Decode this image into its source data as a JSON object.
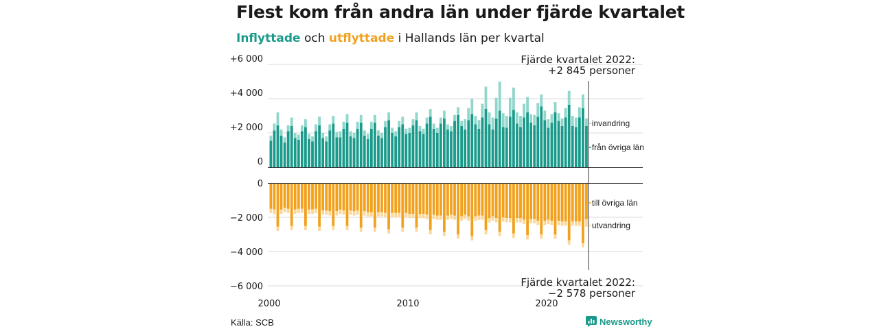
{
  "title": "Flest kom från andra län under fjärde kvartalet",
  "subtitle": {
    "part1": "Inflyttade",
    "part2": " och ",
    "part3": "utflyttade",
    "part4": " i Hallands län per kvartal"
  },
  "source": "Källa: SCB",
  "brand": "Newsworthy",
  "brand_icon": "chart-logo-icon",
  "colors": {
    "in_dark": "#1a9a8a",
    "in_light": "#8fd6cb",
    "out_dark": "#f2a11d",
    "out_light": "#fbd89a",
    "grid": "#d9d9d9",
    "axis": "#333333"
  },
  "chart_data": {
    "type": "bar",
    "stacked": true,
    "diverging": true,
    "grid": true,
    "x_ticks": [
      "2000",
      "2010",
      "2020"
    ],
    "y_top_ticks": [
      "+6 000",
      "+4 000",
      "+2 000",
      "0"
    ],
    "y_bottom_ticks": [
      "0",
      "−2 000",
      "−4 000",
      "−6 000"
    ],
    "ylim_top": [
      0,
      6000
    ],
    "ylim_bottom": [
      -6000,
      0
    ],
    "series_labels": {
      "in_other": "från övriga län",
      "in_abroad": "invandring",
      "out_other": "till övriga län",
      "out_abroad": "utvandring"
    },
    "annotation_top": {
      "line1": "Fjärde kvartalet 2022:",
      "line2": "+2 845 personer"
    },
    "annotation_bottom": {
      "line1": "Fjärde kvartalet 2022:",
      "line2": "−2 578 personer"
    },
    "x_start_year": 2000,
    "quarters_per_year": 4,
    "in_other": [
      1550,
      2150,
      2450,
      1850,
      1450,
      2100,
      2400,
      1700,
      1600,
      2100,
      2350,
      1650,
      1500,
      2100,
      2450,
      1700,
      1500,
      2150,
      2550,
      1750,
      1750,
      2250,
      2600,
      1800,
      1700,
      2250,
      2600,
      1850,
      1650,
      2250,
      2600,
      1850,
      1700,
      2350,
      2750,
      2000,
      1800,
      2350,
      2500,
      1950,
      2000,
      2450,
      2750,
      2100,
      1950,
      2550,
      2950,
      2250,
      2000,
      2550,
      2850,
      2200,
      2100,
      2700,
      3050,
      2400,
      2200,
      2750,
      3100,
      2500,
      2250,
      2900,
      3400,
      2500,
      2200,
      2850,
      3300,
      2350,
      2300,
      2950,
      3350,
      2550,
      2350,
      2900,
      3200,
      2600,
      2450,
      2950,
      3550,
      2750,
      2300,
      2600,
      3200,
      2700,
      2400,
      2900,
      3650,
      2400,
      2350,
      2900,
      3450,
      2400
    ],
    "in_abroad": [
      300,
      400,
      750,
      350,
      300,
      350,
      500,
      300,
      300,
      350,
      450,
      300,
      300,
      400,
      500,
      300,
      300,
      350,
      450,
      300,
      350,
      400,
      500,
      300,
      300,
      400,
      450,
      300,
      300,
      400,
      450,
      300,
      300,
      350,
      450,
      300,
      300,
      350,
      450,
      300,
      300,
      350,
      450,
      300,
      300,
      350,
      450,
      300,
      300,
      350,
      450,
      300,
      300,
      350,
      450,
      300,
      600,
      700,
      900,
      500,
      500,
      800,
      1300,
      700,
      700,
      1200,
      1700,
      800,
      700,
      1100,
      1300,
      650,
      650,
      800,
      900,
      500,
      600,
      800,
      700,
      550,
      500,
      500,
      600,
      450,
      450,
      550,
      800,
      600,
      550,
      600,
      800,
      450
    ],
    "out_other": [
      1500,
      1550,
      2550,
      1550,
      1450,
      1500,
      2500,
      1550,
      1500,
      1500,
      2500,
      1550,
      1550,
      1500,
      2550,
      1600,
      1600,
      1650,
      2500,
      1650,
      1550,
      1600,
      2500,
      1600,
      1650,
      1600,
      2600,
      1650,
      1700,
      1700,
      2600,
      1700,
      1700,
      1750,
      2700,
      1750,
      1750,
      1750,
      2600,
      1750,
      1800,
      1800,
      2600,
      1800,
      1800,
      1850,
      2750,
      1850,
      1900,
      1900,
      2850,
      1900,
      1850,
      1900,
      3000,
      1950,
      1850,
      1950,
      3100,
      1950,
      1900,
      1900,
      2750,
      2050,
      1950,
      2050,
      2850,
      2000,
      2050,
      2050,
      2950,
      2050,
      2050,
      2150,
      3050,
      2100,
      2100,
      2200,
      3000,
      2200,
      2150,
      2200,
      3000,
      2200,
      2250,
      2250,
      3350,
      2250,
      2250,
      2250,
      3500,
      2100
    ],
    "out_abroad": [
      250,
      250,
      250,
      250,
      250,
      250,
      250,
      250,
      250,
      250,
      250,
      250,
      250,
      250,
      250,
      250,
      250,
      250,
      250,
      250,
      250,
      250,
      250,
      250,
      250,
      250,
      250,
      250,
      250,
      250,
      250,
      250,
      250,
      250,
      250,
      250,
      250,
      250,
      250,
      250,
      250,
      250,
      250,
      250,
      250,
      250,
      250,
      250,
      250,
      250,
      250,
      250,
      250,
      250,
      250,
      250,
      250,
      250,
      250,
      250,
      250,
      250,
      250,
      250,
      250,
      250,
      250,
      250,
      250,
      250,
      250,
      250,
      250,
      250,
      250,
      250,
      250,
      250,
      250,
      250,
      250,
      250,
      250,
      250,
      250,
      250,
      250,
      250,
      250,
      250,
      250,
      450
    ]
  }
}
